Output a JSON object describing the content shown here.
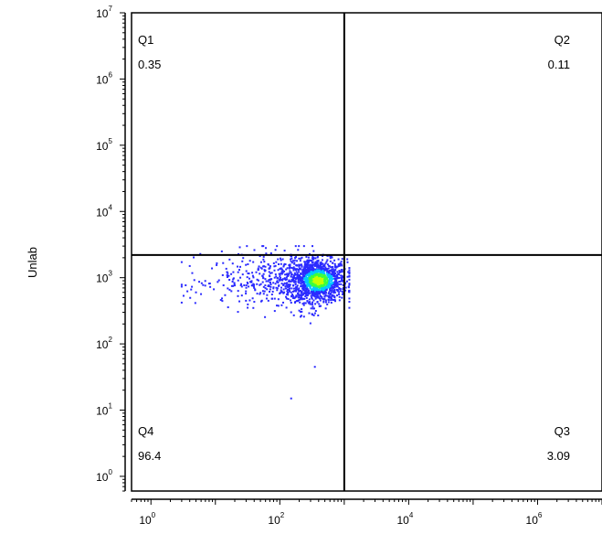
{
  "chart_data": {
    "type": "scatter",
    "subtype": "flow-cytometry density dot plot with quadrant gates",
    "xlabel": "",
    "ylabel": "Unlab",
    "x_scale": "log",
    "y_scale": "log",
    "xlim": [
      0.5,
      10000000
    ],
    "ylim": [
      0.6,
      10000000
    ],
    "x_ticks": [
      {
        "base": "10",
        "exp": "0"
      },
      {
        "base": "10",
        "exp": "2"
      },
      {
        "base": "10",
        "exp": "4"
      },
      {
        "base": "10",
        "exp": "6"
      }
    ],
    "y_ticks": [
      {
        "base": "10",
        "exp": "0"
      },
      {
        "base": "10",
        "exp": "1"
      },
      {
        "base": "10",
        "exp": "2"
      },
      {
        "base": "10",
        "exp": "3"
      },
      {
        "base": "10",
        "exp": "4"
      },
      {
        "base": "10",
        "exp": "5"
      },
      {
        "base": "10",
        "exp": "6"
      },
      {
        "base": "10",
        "exp": "7"
      }
    ],
    "gates": {
      "x": 1000,
      "y": 2200
    },
    "quadrants": [
      {
        "name": "Q1",
        "value": "0.35",
        "position": "top-left"
      },
      {
        "name": "Q2",
        "value": "0.11",
        "position": "top-right"
      },
      {
        "name": "Q3",
        "value": "3.09",
        "position": "bottom-right"
      },
      {
        "name": "Q4",
        "value": "96.4",
        "position": "bottom-left"
      }
    ],
    "population": {
      "center_x": 400,
      "center_y": 900,
      "x_range": [
        3,
        1200
      ],
      "y_range": [
        100,
        3000
      ],
      "density_colors": [
        "#2b2bff",
        "#00c8ff",
        "#3cff3c",
        "#c8ff00"
      ]
    },
    "outliers": [
      {
        "x": 150,
        "y": 15
      },
      {
        "x": 350,
        "y": 45
      },
      {
        "x": 5,
        "y": 600
      },
      {
        "x": 4,
        "y": 1500
      }
    ],
    "grid": false,
    "legend": "none"
  }
}
